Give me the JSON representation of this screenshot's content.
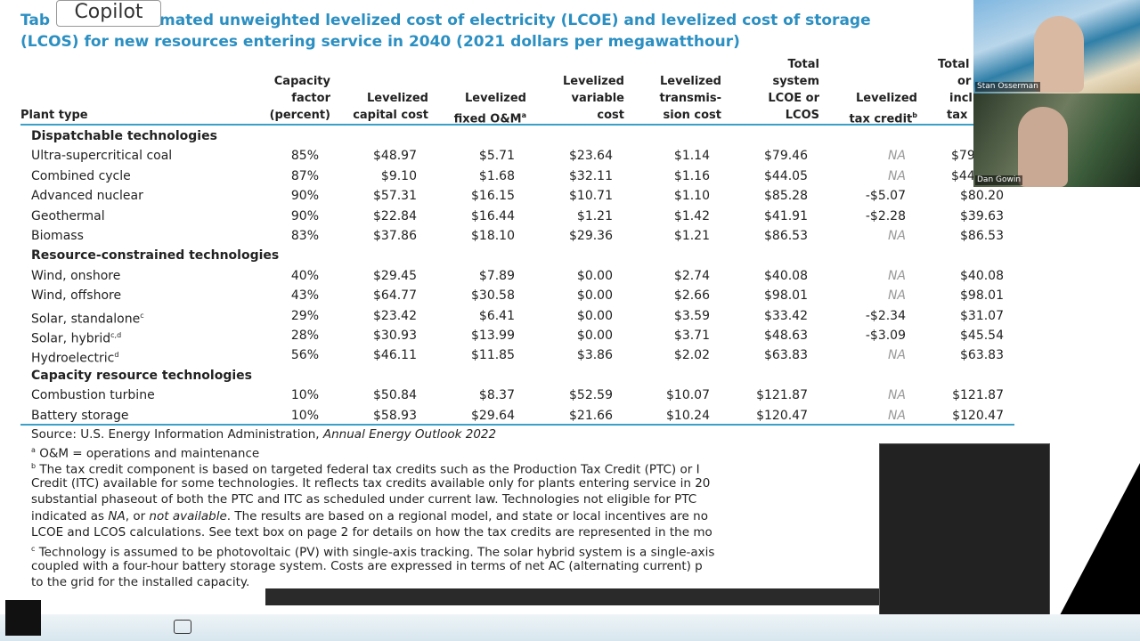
{
  "overlay": {
    "copilot": "Copilot"
  },
  "title": {
    "start": "Tab",
    "rest": "mated unweighted levelized cost of electricity (LCOE) and levelized cost of storage",
    "line2": "(LCOS) for new resources entering service in 2040 (2021 dollars per megawatthour)"
  },
  "table": {
    "headers": [
      {
        "lines": [
          "Plant type"
        ]
      },
      {
        "lines": [
          "Capacity",
          "factor",
          "(percent)"
        ]
      },
      {
        "lines": [
          "Levelized",
          "capital cost"
        ]
      },
      {
        "lines": [
          "Levelized",
          "fixed O&M"
        ],
        "sup": "a"
      },
      {
        "lines": [
          "Levelized",
          "variable",
          "cost"
        ]
      },
      {
        "lines": [
          "Levelized",
          "transmis-",
          "sion cost"
        ]
      },
      {
        "lines": [
          "Total",
          "system",
          "LCOE or",
          "LCOS"
        ]
      },
      {
        "lines": [
          "Levelized",
          "tax credit"
        ],
        "sup": "b"
      },
      {
        "lines": [
          "Total",
          "or",
          "incl",
          "tax"
        ]
      }
    ],
    "sections": [
      {
        "name": "Dispatchable technologies",
        "rows": [
          {
            "name": "Ultra-supercritical coal",
            "values": [
              "85%",
              "$48.97",
              "$5.71",
              "$23.64",
              "$1.14",
              "$79.46",
              "NA",
              "$79"
            ]
          },
          {
            "name": "Combined cycle",
            "values": [
              "87%",
              "$9.10",
              "$1.68",
              "$32.11",
              "$1.16",
              "$44.05",
              "NA",
              "$44"
            ]
          },
          {
            "name": "Advanced nuclear",
            "values": [
              "90%",
              "$57.31",
              "$16.15",
              "$10.71",
              "$1.10",
              "$85.28",
              "-$5.07",
              "$80.20"
            ]
          },
          {
            "name": "Geothermal",
            "values": [
              "90%",
              "$22.84",
              "$16.44",
              "$1.21",
              "$1.42",
              "$41.91",
              "-$2.28",
              "$39.63"
            ]
          },
          {
            "name": "Biomass",
            "values": [
              "83%",
              "$37.86",
              "$18.10",
              "$29.36",
              "$1.21",
              "$86.53",
              "NA",
              "$86.53"
            ]
          }
        ]
      },
      {
        "name": "Resource-constrained technologies",
        "rows": [
          {
            "name": "Wind, onshore",
            "values": [
              "40%",
              "$29.45",
              "$7.89",
              "$0.00",
              "$2.74",
              "$40.08",
              "NA",
              "$40.08"
            ]
          },
          {
            "name": "Wind, offshore",
            "values": [
              "43%",
              "$64.77",
              "$30.58",
              "$0.00",
              "$2.66",
              "$98.01",
              "NA",
              "$98.01"
            ]
          },
          {
            "name": "Solar, standalone",
            "sup": "c",
            "values": [
              "29%",
              "$23.42",
              "$6.41",
              "$0.00",
              "$3.59",
              "$33.42",
              "-$2.34",
              "$31.07"
            ]
          },
          {
            "name": "Solar, hybrid",
            "sup": "c,d",
            "values": [
              "28%",
              "$30.93",
              "$13.99",
              "$0.00",
              "$3.71",
              "$48.63",
              "-$3.09",
              "$45.54"
            ]
          },
          {
            "name": "Hydroelectric",
            "sup": "d",
            "values": [
              "56%",
              "$46.11",
              "$11.85",
              "$3.86",
              "$2.02",
              "$63.83",
              "NA",
              "$63.83"
            ]
          }
        ]
      },
      {
        "name": "Capacity resource technologies",
        "rows": [
          {
            "name": "Combustion turbine",
            "values": [
              "10%",
              "$50.84",
              "$8.37",
              "$52.59",
              "$10.07",
              "$121.87",
              "NA",
              "$121.87"
            ]
          },
          {
            "name": "Battery storage",
            "values": [
              "10%",
              "$58.93",
              "$29.64",
              "$21.66",
              "$10.24",
              "$120.47",
              "NA",
              "$120.47"
            ]
          }
        ]
      }
    ]
  },
  "footnotes": [
    [
      {
        "text": "Source: U.S. Energy Information Administration, "
      },
      {
        "text": "Annual Energy Outlook 2022",
        "italic": true
      }
    ],
    [
      {
        "text": "a",
        "sup": true
      },
      {
        "text": " O&M = operations and maintenance"
      }
    ],
    [
      {
        "text": "b",
        "sup": true
      },
      {
        "text": " The tax credit component is based on targeted federal tax credits such as the Production Tax Credit (PTC) or I"
      }
    ],
    [
      {
        "text": "Credit (ITC) available for some technologies. It reflects tax credits available only for plants entering service in 20"
      }
    ],
    [
      {
        "text": "substantial phaseout of both the PTC and ITC as scheduled under current law. Technologies not eligible for PTC"
      }
    ],
    [
      {
        "text": "indicated as "
      },
      {
        "text": "NA",
        "italic": true
      },
      {
        "text": ", or "
      },
      {
        "text": "not available",
        "italic": true
      },
      {
        "text": ". The results are based on a regional model, and state or local incentives are no"
      }
    ],
    [
      {
        "text": "LCOE and LCOS calculations. See text box on page 2 for details on how the tax credits are represented in the mo"
      }
    ],
    [
      {
        "text": "c",
        "sup": true
      },
      {
        "text": " Technology is assumed to be photovoltaic (PV) with single-axis tracking. The solar hybrid system is a single-axis"
      }
    ],
    [
      {
        "text": "coupled with a four-hour battery storage system. Costs are expressed in terms of net AC (alternating current) p"
      }
    ],
    [
      {
        "text": "to the grid for the installed capacity."
      }
    ]
  ],
  "participants": [
    "Stan Osserman",
    "Dan Gowin"
  ]
}
